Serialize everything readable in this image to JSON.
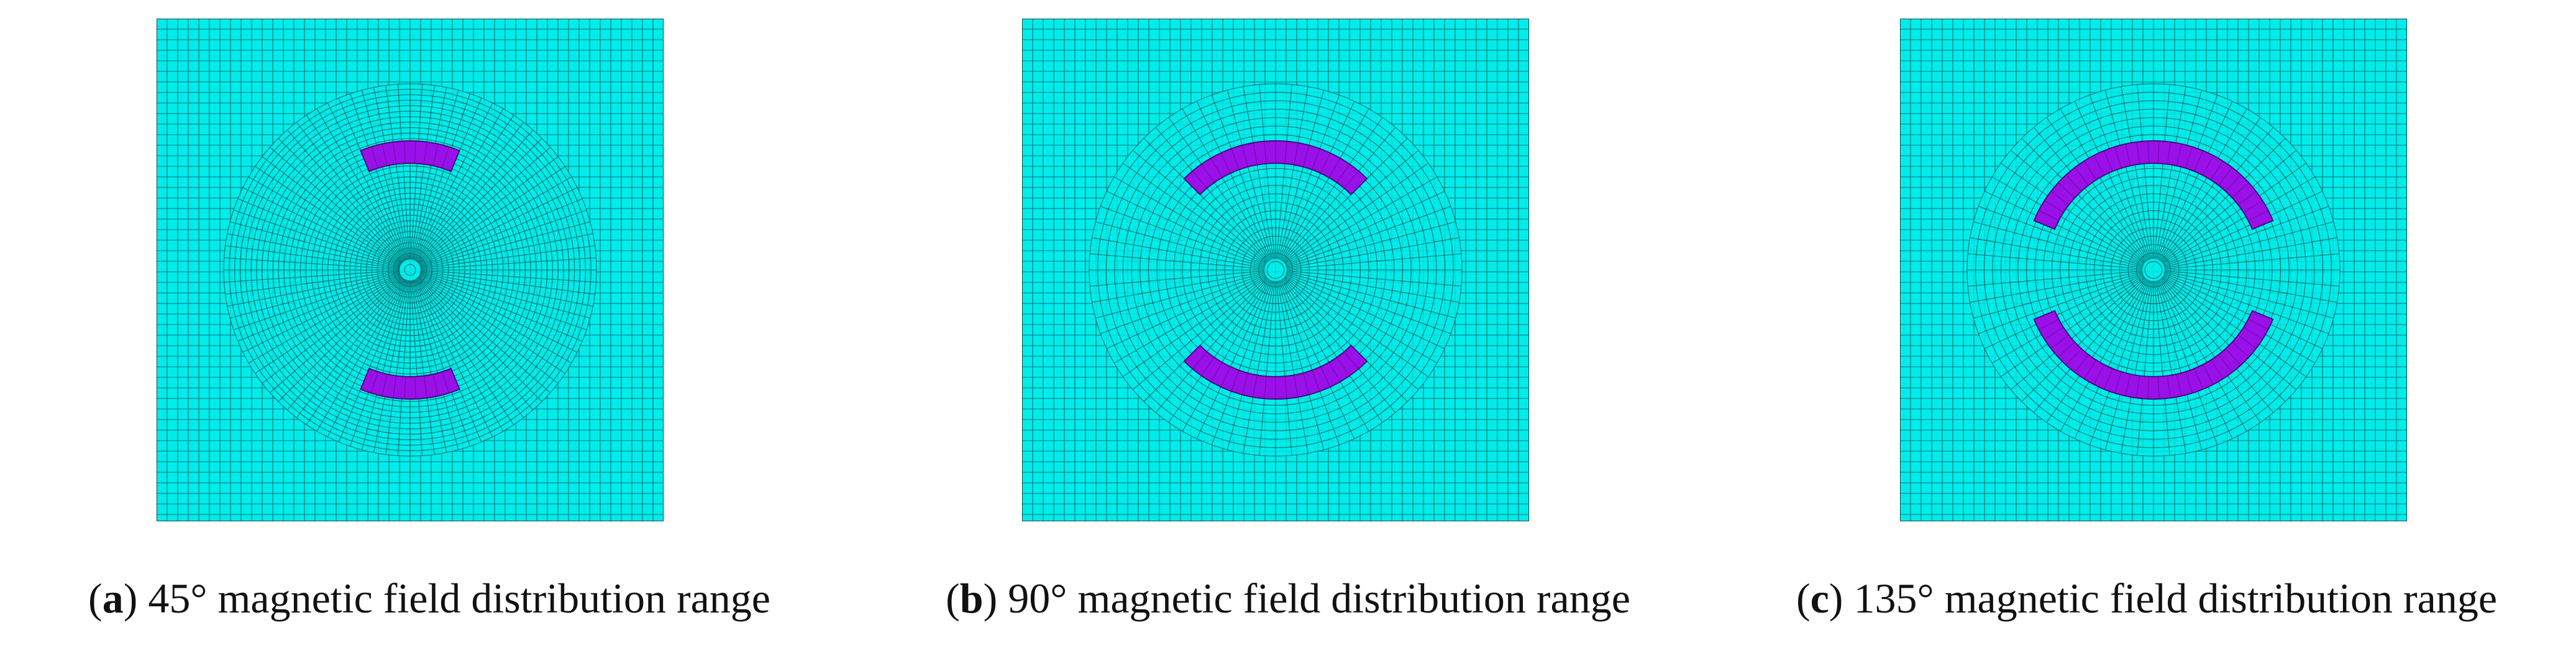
{
  "colors": {
    "mesh_fill": "#00ecea",
    "mesh_line": "#0c4a4a",
    "magnet_fill": "#9a10e8",
    "magnet_line": "#4a0a7a",
    "caption_text": "#111111"
  },
  "panels": [
    {
      "letter": "a",
      "caption": "45° magnetic field distribution range",
      "magnet_span_deg": 45,
      "dense_mesh": true
    },
    {
      "letter": "b",
      "caption": "90° magnetic field distribution range",
      "magnet_span_deg": 90,
      "dense_mesh": false
    },
    {
      "letter": "c",
      "caption": "135° magnetic field distribution range",
      "magnet_span_deg": 135,
      "dense_mesh": false
    }
  ]
}
